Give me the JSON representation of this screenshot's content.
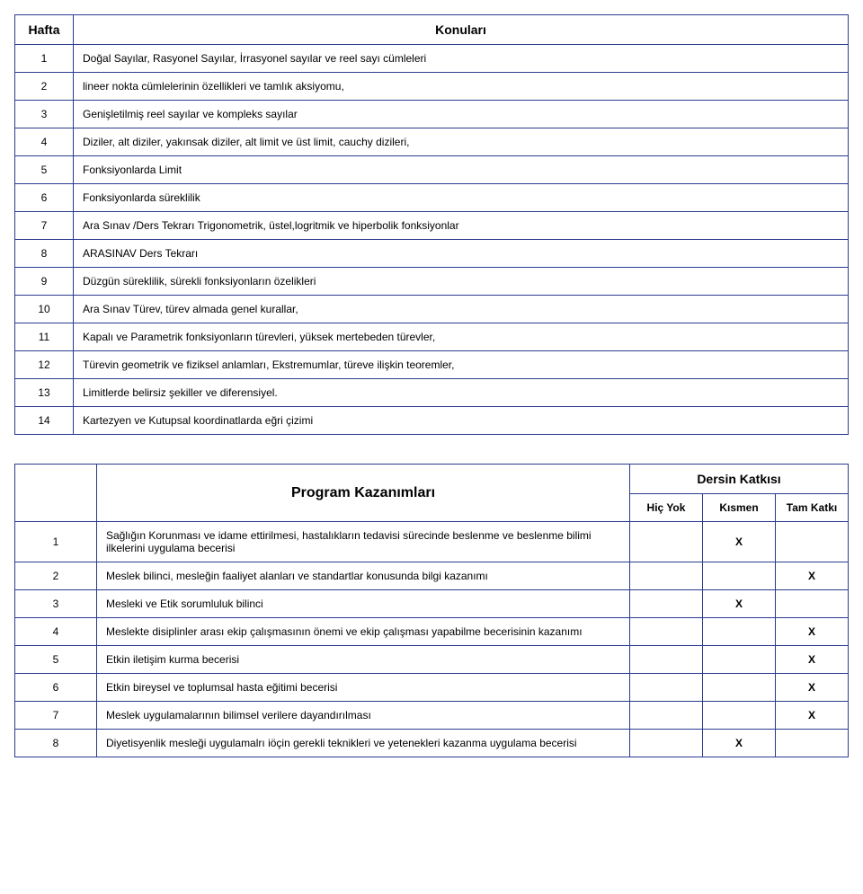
{
  "weeksTable": {
    "headers": {
      "week": "Hafta",
      "topics": "Konuları"
    },
    "rows": [
      {
        "n": "1",
        "text": "Doğal Sayılar, Rasyonel Sayılar, İrrasyonel sayılar ve reel sayı cümleleri"
      },
      {
        "n": "2",
        "text": "lineer nokta cümlelerinin özellikleri ve tamlık aksiyomu,"
      },
      {
        "n": "3",
        "text": "Genişletilmiş reel sayılar ve kompleks sayılar"
      },
      {
        "n": "4",
        "text": "Diziler, alt diziler, yakınsak diziler, alt limit ve üst limit, cauchy dizileri,"
      },
      {
        "n": "5",
        "text": "Fonksiyonlarda Limit"
      },
      {
        "n": "6",
        "text": "Fonksiyonlarda süreklilik"
      },
      {
        "n": "7",
        "text": "Ara Sınav /Ders Tekrarı Trigonometrik, üstel,logritmik ve hiperbolik fonksiyonlar"
      },
      {
        "n": "8",
        "text": "ARASINAV Ders Tekrarı"
      },
      {
        "n": "9",
        "text": "Düzgün süreklilik, sürekli fonksiyonların özelikleri"
      },
      {
        "n": "10",
        "text": "Ara Sınav Türev, türev almada genel kurallar,"
      },
      {
        "n": "11",
        "text": "Kapalı ve Parametrik fonksiyonların türevleri, yüksek mertebeden türevler,"
      },
      {
        "n": "12",
        "text": "Türevin geometrik ve fiziksel anlamları, Ekstremumlar, türeve ilişkin teoremler,"
      },
      {
        "n": "13",
        "text": "Limitlerde belirsiz şekiller ve diferensiyel."
      },
      {
        "n": "14",
        "text": "Kartezyen ve Kutupsal koordinatlarda eğri çizimi"
      }
    ]
  },
  "outcomesTable": {
    "header": {
      "program": "Program Kazanımları",
      "contribution": "Dersin Katkısı",
      "none": "Hiç Yok",
      "partial": "Kısmen",
      "full": "Tam Katkı"
    },
    "rows": [
      {
        "n": "1",
        "text": "Sağlığın Korunması ve idame ettirilmesi, hastalıkların tedavisi sürecinde beslenme ve beslenme bilimi ilkelerini uygulama becerisi",
        "none": "",
        "partial": "X",
        "full": ""
      },
      {
        "n": "2",
        "text": "Meslek bilinci, mesleğin faaliyet alanları ve standartlar konusunda bilgi kazanımı",
        "none": "",
        "partial": "",
        "full": "X"
      },
      {
        "n": "3",
        "text": "Mesleki ve Etik sorumluluk bilinci",
        "none": "",
        "partial": "X",
        "full": ""
      },
      {
        "n": "4",
        "text": "Meslekte disiplinler arası ekip çalışmasının önemi ve ekip çalışması yapabilme becerisinin kazanımı",
        "none": "",
        "partial": "",
        "full": "X"
      },
      {
        "n": "5",
        "text": "Etkin iletişim kurma becerisi",
        "none": "",
        "partial": "",
        "full": "X"
      },
      {
        "n": "6",
        "text": "Etkin bireysel ve toplumsal hasta eğitimi becerisi",
        "none": "",
        "partial": "",
        "full": "X"
      },
      {
        "n": "7",
        "text": "Meslek uygulamalarının bilimsel verilere dayandırılması",
        "none": "",
        "partial": "",
        "full": "X"
      },
      {
        "n": "8",
        "text": "Diyetisyenlik mesleği uygulamalrı iöçin gerekli teknikleri ve yetenekleri kazanma uygulama becerisi",
        "none": "",
        "partial": "X",
        "full": ""
      }
    ]
  },
  "style": {
    "border_color": "#2a3b8f",
    "background_color": "#ffffff",
    "font_family": "Verdana",
    "body_fontsize": 12,
    "header_fontsize": 14,
    "outcomes_header_fontsize": 16
  }
}
